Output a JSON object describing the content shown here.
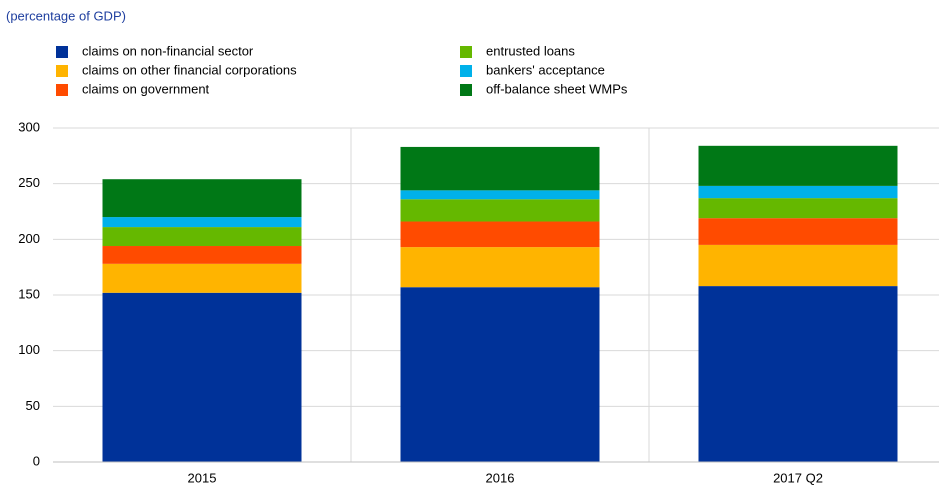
{
  "chart_data": {
    "type": "stacked_bar",
    "subtitle": "(percentage of GDP)",
    "categories": [
      "2015",
      "2016",
      "2017 Q2"
    ],
    "series": [
      {
        "name": "claims on non-financial sector",
        "color": "#003299",
        "values": [
          152,
          157,
          158
        ]
      },
      {
        "name": "claims on other financial corporations",
        "color": "#ffb400",
        "values": [
          26,
          36,
          37
        ]
      },
      {
        "name": "claims on government",
        "color": "#ff4b00",
        "values": [
          16,
          23,
          24
        ]
      },
      {
        "name": "entrusted loans",
        "color": "#65b800",
        "values": [
          17,
          20,
          18
        ]
      },
      {
        "name": "bankers' acceptance",
        "color": "#00b1ea",
        "values": [
          9,
          8,
          11
        ]
      },
      {
        "name": "off-balance sheet WMPs",
        "color": "#007816",
        "values": [
          34,
          39,
          36
        ]
      }
    ],
    "ylim": [
      0,
      300
    ],
    "yticks": [
      0,
      50,
      100,
      150,
      200,
      250,
      300
    ],
    "grid": true
  }
}
